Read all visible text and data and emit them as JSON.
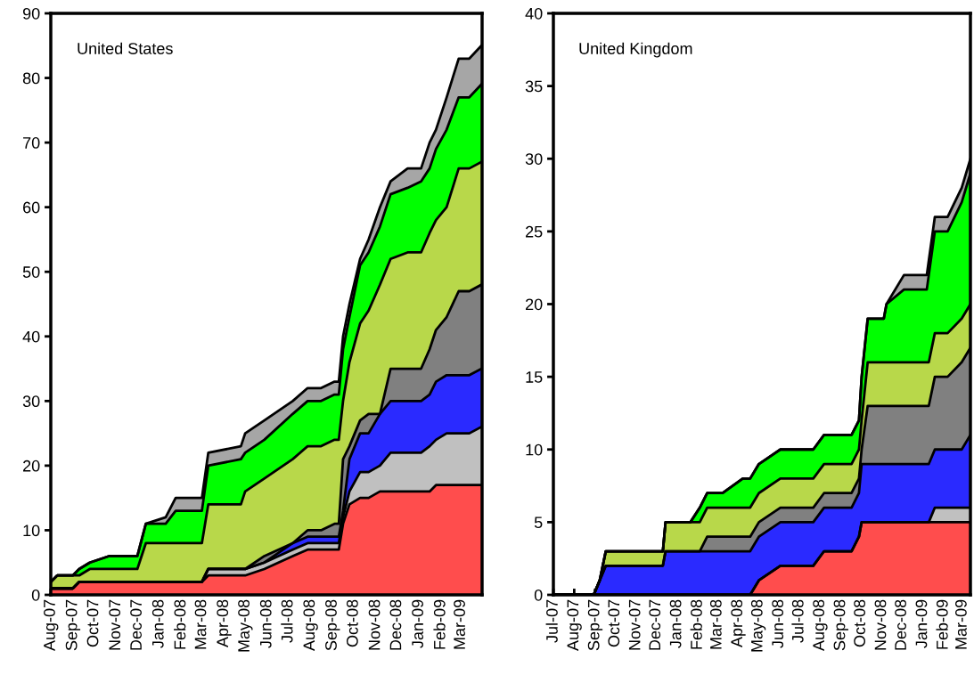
{
  "chart_data": [
    {
      "type": "area",
      "stacked": true,
      "title": "United States",
      "grid": false,
      "legend": false,
      "x": [
        "2007-08-01",
        "2007-08-10",
        "2007-09-01",
        "2007-09-10",
        "2007-09-25",
        "2007-10-22",
        "2007-12-01",
        "2007-12-13",
        "2008-01-10",
        "2008-01-24",
        "2008-03-01",
        "2008-03-10",
        "2008-04-25",
        "2008-05-01",
        "2008-05-28",
        "2008-07-07",
        "2008-07-28",
        "2008-08-16",
        "2008-09-04",
        "2008-09-10",
        "2008-09-16",
        "2008-09-25",
        "2008-10-10",
        "2008-10-22",
        "2008-11-07",
        "2008-11-22",
        "2008-12-16",
        "2009-01-04",
        "2009-01-16",
        "2009-01-25",
        "2009-02-09",
        "2009-02-26",
        "2009-03-13",
        "2009-03-30"
      ],
      "xlim": [
        "2007-08-01",
        "2009-03-31"
      ],
      "ylim": [
        0,
        90
      ],
      "yticks": [
        0,
        10,
        20,
        30,
        40,
        50,
        60,
        70,
        80,
        90
      ],
      "xticks": [
        {
          "value": "2007-08-01",
          "label": "Aug-07"
        },
        {
          "value": "2007-09-01",
          "label": "Sep-07"
        },
        {
          "value": "2007-10-01",
          "label": "Oct-07"
        },
        {
          "value": "2007-11-01",
          "label": "Nov-07"
        },
        {
          "value": "2007-12-01",
          "label": "Dec-07"
        },
        {
          "value": "2008-01-01",
          "label": "Jan-08"
        },
        {
          "value": "2008-02-01",
          "label": "Feb-08"
        },
        {
          "value": "2008-03-01",
          "label": "Mar-08"
        },
        {
          "value": "2008-04-01",
          "label": "Apr-08"
        },
        {
          "value": "2008-05-01",
          "label": "May-08"
        },
        {
          "value": "2008-06-01",
          "label": "Jun-08"
        },
        {
          "value": "2008-07-01",
          "label": "Jul-08"
        },
        {
          "value": "2008-08-01",
          "label": "Aug-08"
        },
        {
          "value": "2008-09-01",
          "label": "Sep-08"
        },
        {
          "value": "2008-10-01",
          "label": "Oct-08"
        },
        {
          "value": "2008-11-01",
          "label": "Nov-08"
        },
        {
          "value": "2008-12-01",
          "label": "Dec-08"
        },
        {
          "value": "2009-01-01",
          "label": "Jan-09"
        },
        {
          "value": "2009-02-01",
          "label": "Feb-09"
        },
        {
          "value": "2009-03-01",
          "label": "Mar-09"
        }
      ],
      "series": [
        {
          "color": "#ff4d4d",
          "values": [
            1,
            1,
            1,
            2,
            2,
            2,
            2,
            2,
            2,
            2,
            2,
            3,
            3,
            3,
            4,
            6,
            7,
            7,
            7,
            7,
            11,
            14,
            15,
            15,
            16,
            16,
            16,
            16,
            16,
            17,
            17,
            17,
            17,
            17
          ]
        },
        {
          "color": "#c0c0c0",
          "values": [
            0,
            0,
            0,
            0,
            0,
            0,
            0,
            0,
            0,
            0,
            0,
            1,
            1,
            1,
            1,
            1,
            1,
            1,
            1,
            1,
            1,
            2,
            4,
            4,
            4,
            6,
            6,
            6,
            7,
            7,
            8,
            8,
            8,
            9
          ]
        },
        {
          "color": "#2a2aff",
          "values": [
            0,
            0,
            0,
            0,
            0,
            0,
            0,
            0,
            0,
            0,
            0,
            0,
            0,
            0,
            0,
            1,
            1,
            1,
            1,
            1,
            1,
            5,
            6,
            6,
            8,
            8,
            8,
            8,
            8,
            9,
            9,
            9,
            9,
            9
          ]
        },
        {
          "color": "#808080",
          "values": [
            0,
            0,
            0,
            0,
            0,
            0,
            0,
            0,
            0,
            0,
            0,
            0,
            0,
            0,
            1,
            0,
            1,
            1,
            2,
            2,
            8,
            2,
            2,
            3,
            0,
            5,
            5,
            5,
            7,
            8,
            9,
            13,
            13,
            13
          ]
        },
        {
          "color": "#b8d84a",
          "values": [
            1,
            2,
            2,
            1,
            2,
            2,
            2,
            6,
            6,
            6,
            6,
            10,
            10,
            12,
            12,
            13,
            13,
            13,
            13,
            13,
            9,
            13,
            15,
            16,
            20,
            17,
            18,
            18,
            18,
            17,
            17,
            19,
            19,
            19
          ]
        },
        {
          "color": "#00ff00",
          "values": [
            0,
            0,
            0,
            1,
            1,
            2,
            2,
            3,
            3,
            5,
            5,
            6,
            7,
            6,
            6,
            7,
            7,
            7,
            7,
            7,
            8,
            7,
            9,
            9,
            9,
            10,
            10,
            11,
            10,
            11,
            12,
            11,
            11,
            12
          ]
        },
        {
          "color": "#a6a6a6",
          "values": [
            0,
            0,
            0,
            0,
            0,
            0,
            0,
            0,
            1,
            2,
            2,
            2,
            2,
            3,
            3,
            2,
            2,
            2,
            2,
            2,
            2,
            2,
            1,
            2,
            3,
            2,
            3,
            2,
            4,
            3,
            5,
            6,
            6,
            6
          ]
        }
      ]
    },
    {
      "type": "area",
      "stacked": true,
      "title": "United Kingdom",
      "grid": false,
      "legend": false,
      "x": [
        "2007-07-01",
        "2007-08-30",
        "2007-09-08",
        "2007-09-17",
        "2007-12-11",
        "2007-12-15",
        "2008-01-21",
        "2008-02-04",
        "2008-02-15",
        "2008-03-09",
        "2008-04-08",
        "2008-04-19",
        "2008-05-02",
        "2008-06-03",
        "2008-07-22",
        "2008-08-07",
        "2008-09-17",
        "2008-09-28",
        "2008-10-02",
        "2008-10-11",
        "2008-11-04",
        "2008-11-08",
        "2008-12-04",
        "2009-01-07",
        "2009-01-10",
        "2009-01-19",
        "2009-02-07",
        "2009-02-28",
        "2009-03-13"
      ],
      "xlim": [
        "2007-07-01",
        "2009-03-13"
      ],
      "ylim": [
        0,
        40
      ],
      "yticks": [
        0,
        5,
        10,
        15,
        20,
        25,
        30,
        35,
        40
      ],
      "xticks": [
        {
          "value": "2007-07-01",
          "label": "Jul-07"
        },
        {
          "value": "2007-08-01",
          "label": "Aug-07"
        },
        {
          "value": "2007-09-01",
          "label": "Sep-07"
        },
        {
          "value": "2007-10-01",
          "label": "Oct-07"
        },
        {
          "value": "2007-11-01",
          "label": "Nov-07"
        },
        {
          "value": "2007-12-01",
          "label": "Dec-07"
        },
        {
          "value": "2008-01-01",
          "label": "Jan-08"
        },
        {
          "value": "2008-02-01",
          "label": "Feb-08"
        },
        {
          "value": "2008-03-01",
          "label": "Mar-08"
        },
        {
          "value": "2008-04-01",
          "label": "Apr-08"
        },
        {
          "value": "2008-05-01",
          "label": "May-08"
        },
        {
          "value": "2008-06-01",
          "label": "Jun-08"
        },
        {
          "value": "2008-07-01",
          "label": "Jul-08"
        },
        {
          "value": "2008-08-01",
          "label": "Aug-08"
        },
        {
          "value": "2008-09-01",
          "label": "Sep-08"
        },
        {
          "value": "2008-10-01",
          "label": "Oct-08"
        },
        {
          "value": "2008-11-01",
          "label": "Nov-08"
        },
        {
          "value": "2008-12-01",
          "label": "Dec-08"
        },
        {
          "value": "2009-01-01",
          "label": "Jan-09"
        },
        {
          "value": "2009-02-01",
          "label": "Feb-09"
        },
        {
          "value": "2009-03-01",
          "label": "Mar-09"
        }
      ],
      "series": [
        {
          "color": "#ff4d4d",
          "values": [
            0,
            0,
            0,
            0,
            0,
            0,
            0,
            0,
            0,
            0,
            0,
            0,
            1,
            2,
            2,
            3,
            3,
            4,
            5,
            5,
            5,
            5,
            5,
            5,
            5,
            5,
            5,
            5,
            5
          ]
        },
        {
          "color": "#c0c0c0",
          "values": [
            0,
            0,
            0,
            0,
            0,
            0,
            0,
            0,
            0,
            0,
            0,
            0,
            0,
            0,
            0,
            0,
            0,
            0,
            0,
            0,
            0,
            0,
            0,
            0,
            0,
            1,
            1,
            1,
            1
          ]
        },
        {
          "color": "#2a2aff",
          "values": [
            0,
            0,
            1,
            2,
            2,
            3,
            3,
            3,
            3,
            3,
            3,
            3,
            3,
            3,
            3,
            3,
            3,
            3,
            4,
            4,
            4,
            4,
            4,
            4,
            4,
            4,
            4,
            4,
            5
          ]
        },
        {
          "color": "#808080",
          "values": [
            0,
            0,
            0,
            0,
            0,
            0,
            0,
            0,
            1,
            1,
            1,
            1,
            1,
            1,
            1,
            1,
            1,
            1,
            1,
            4,
            4,
            4,
            4,
            4,
            4,
            5,
            5,
            6,
            6
          ]
        },
        {
          "color": "#b8d84a",
          "values": [
            0,
            0,
            0,
            1,
            1,
            2,
            2,
            2,
            2,
            2,
            2,
            2,
            2,
            2,
            2,
            2,
            2,
            2,
            2,
            3,
            3,
            3,
            3,
            3,
            3,
            3,
            3,
            3,
            3
          ]
        },
        {
          "color": "#00ff00",
          "values": [
            0,
            0,
            0,
            0,
            0,
            0,
            0,
            1,
            1,
            1,
            2,
            2,
            2,
            2,
            2,
            2,
            2,
            2,
            3,
            3,
            3,
            4,
            5,
            5,
            6,
            7,
            7,
            8,
            9
          ]
        },
        {
          "color": "#a6a6a6",
          "values": [
            0,
            0,
            0,
            0,
            0,
            0,
            0,
            0,
            0,
            0,
            0,
            0,
            0,
            0,
            0,
            0,
            0,
            0,
            0,
            0,
            0,
            0,
            1,
            1,
            1,
            1,
            1,
            1,
            1
          ]
        }
      ]
    }
  ]
}
